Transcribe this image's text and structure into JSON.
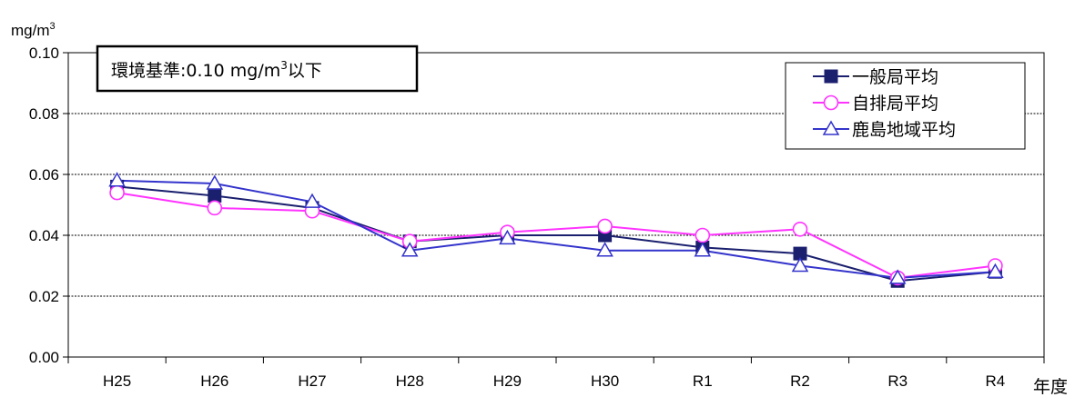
{
  "chart_data": {
    "type": "line",
    "categories": [
      "H25",
      "H26",
      "H27",
      "H28",
      "H29",
      "H30",
      "R1",
      "R2",
      "R3",
      "R4"
    ],
    "series": [
      {
        "name": "一般局平均",
        "marker": "filled-square",
        "color": "#1a1f6e",
        "values": [
          0.056,
          0.053,
          0.049,
          0.038,
          0.04,
          0.04,
          0.036,
          0.034,
          0.025,
          0.028
        ]
      },
      {
        "name": "自排局平均",
        "marker": "open-circle",
        "color": "#ff33ff",
        "values": [
          0.054,
          0.049,
          0.048,
          0.038,
          0.041,
          0.043,
          0.04,
          0.042,
          0.026,
          0.03
        ]
      },
      {
        "name": "鹿島地域平均",
        "marker": "open-triangle",
        "color": "#3333cc",
        "values": [
          0.058,
          0.057,
          0.051,
          0.035,
          0.039,
          0.035,
          0.035,
          0.03,
          0.026,
          0.028
        ]
      }
    ],
    "y_unit": {
      "base": "mg/m",
      "exp": "3"
    },
    "x_unit": "年度",
    "yticks": [
      "0.00",
      "0.02",
      "0.04",
      "0.06",
      "0.08",
      "0.10"
    ],
    "ylim": [
      0,
      0.1
    ],
    "grid": true,
    "legend_position": "top-right",
    "annotation": {
      "prefix": "環境基準:0.10 mg/m",
      "exp": "3",
      "suffix": "以下"
    }
  }
}
